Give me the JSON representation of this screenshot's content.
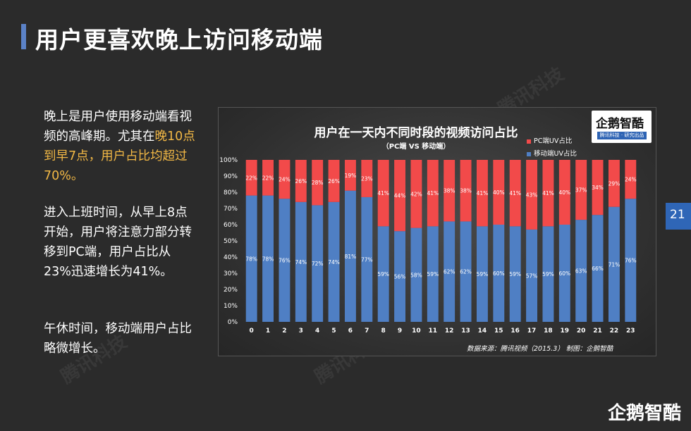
{
  "slide": {
    "title": "用户更喜欢晚上访问移动端",
    "page_number": "21",
    "brand": "企鹅智酷",
    "watermark_text": "腾讯科技"
  },
  "sidebar": {
    "p1_a": "晚上是用户使用移动端看视频的高峰期。尤其在",
    "p1_b": "晚10点到早7点，用户占比均超过70%。",
    "p2": "进入上班时间，从早上8点开始，用户将注意力部分转移到PC端，用户占比从23%迅速增长为41%。",
    "p3": "午休时间，移动端用户占比略微增长。"
  },
  "logo": {
    "name": "企鹅智酷",
    "tagline": "腾讯科技 · 研究出品"
  },
  "colors": {
    "pc": "#f24a4a",
    "mobile": "#4f7fc4",
    "accent": "#5b82c7",
    "highlight": "#f2b845"
  },
  "chart_data": {
    "type": "bar",
    "stacked": true,
    "title": "用户在一天内不同时段的视频访问占比",
    "subtitle": "（PC端 VS 移动端）",
    "categories": [
      "0",
      "1",
      "2",
      "3",
      "4",
      "5",
      "6",
      "7",
      "8",
      "9",
      "10",
      "11",
      "12",
      "13",
      "14",
      "15",
      "16",
      "17",
      "18",
      "19",
      "20",
      "21",
      "22",
      "23"
    ],
    "series": [
      {
        "name": "移动端UV占比",
        "values": [
          78,
          78,
          76,
          74,
          72,
          74,
          81,
          77,
          59,
          56,
          58,
          59,
          62,
          62,
          59,
          60,
          59,
          57,
          59,
          60,
          63,
          66,
          71,
          76
        ]
      },
      {
        "name": "PC端UV占比",
        "values": [
          22,
          22,
          24,
          26,
          28,
          26,
          19,
          23,
          41,
          44,
          42,
          41,
          38,
          38,
          41,
          40,
          41,
          43,
          41,
          40,
          37,
          34,
          29,
          24
        ]
      }
    ],
    "y_ticks": [
      "0%",
      "10%",
      "20%",
      "30%",
      "40%",
      "50%",
      "60%",
      "70%",
      "80%",
      "90%",
      "100%"
    ],
    "ylim": [
      0,
      100
    ],
    "legend_position": "top-right",
    "source": "数据来源：腾讯视频（2015.3）     制图：企鹅智酷"
  }
}
